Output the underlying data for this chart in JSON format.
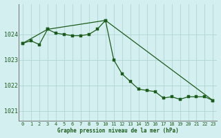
{
  "title": "Graphe pression niveau de la mer (hPa)",
  "background_color": "#d4efef",
  "grid_color": "#b0d4d4",
  "line_color": "#1a5c1a",
  "xlim": [
    -0.5,
    23.5
  ],
  "ylim": [
    1020.6,
    1025.2
  ],
  "yticks": [
    1021,
    1022,
    1023,
    1024
  ],
  "xticks": [
    0,
    1,
    2,
    3,
    4,
    5,
    6,
    7,
    8,
    9,
    10,
    11,
    12,
    13,
    14,
    15,
    16,
    17,
    18,
    19,
    20,
    21,
    22,
    23
  ],
  "xtick_labels": [
    "0",
    "1",
    "2",
    "3",
    "4",
    "5",
    "6",
    "7",
    "8",
    "9",
    "10",
    "11",
    "12",
    "13",
    "14",
    "15",
    "16",
    "17",
    "18",
    "19",
    "20",
    "21",
    "22",
    "23"
  ],
  "line1_x": [
    0,
    1,
    2,
    3,
    4,
    5,
    6,
    7,
    8,
    9,
    10,
    11,
    12,
    13,
    14,
    15,
    16,
    17,
    18,
    19,
    20,
    21,
    22,
    23
  ],
  "line1_y": [
    1023.65,
    1023.75,
    1023.6,
    1024.2,
    1024.05,
    1024.0,
    1023.95,
    1023.95,
    1024.0,
    1024.2,
    1024.55,
    1023.0,
    1022.45,
    1022.15,
    1021.85,
    1021.8,
    1021.75,
    1021.5,
    1021.55,
    1021.45,
    1021.55,
    1021.55,
    1021.55,
    1021.4
  ],
  "line2_x": [
    0,
    3,
    10,
    23
  ],
  "line2_y": [
    1023.65,
    1024.2,
    1024.55,
    1021.4
  ]
}
